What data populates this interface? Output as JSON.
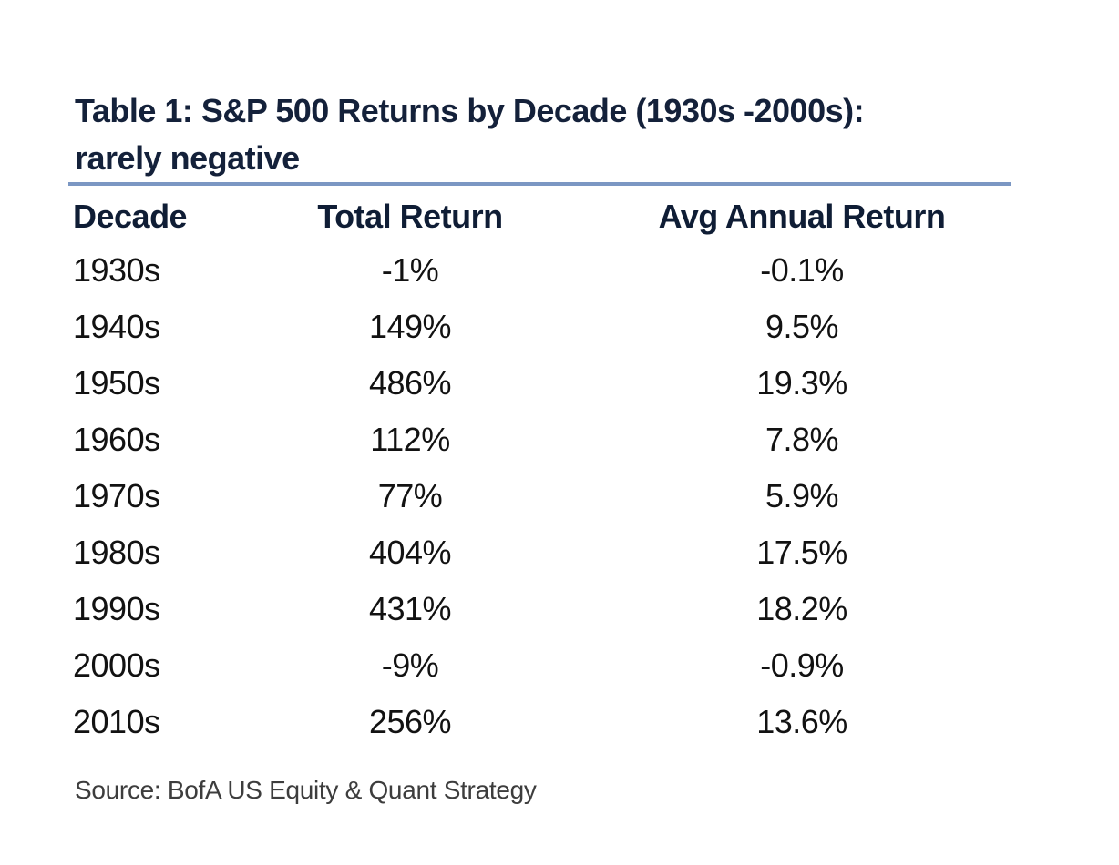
{
  "colors": {
    "title_navy": "#14213A",
    "header_navy": "#0F1D35",
    "body_text": "#121212",
    "divider_blue": "#7B97C3",
    "source_gray": "#3D3D3D"
  },
  "header": {
    "title_line1": "Table 1: S&P 500 Returns by Decade (1930s -2000s):",
    "title_line2": "rarely negative"
  },
  "table": {
    "columns": [
      "Decade",
      "Total Return",
      "Avg Annual Return"
    ],
    "rows": [
      {
        "decade": "1930s",
        "total_return": "-1%",
        "avg_annual_return": "-0.1%"
      },
      {
        "decade": "1940s",
        "total_return": "149%",
        "avg_annual_return": "9.5%"
      },
      {
        "decade": "1950s",
        "total_return": "486%",
        "avg_annual_return": "19.3%"
      },
      {
        "decade": "1960s",
        "total_return": "112%",
        "avg_annual_return": "7.8%"
      },
      {
        "decade": "1970s",
        "total_return": "77%",
        "avg_annual_return": "5.9%"
      },
      {
        "decade": "1980s",
        "total_return": "404%",
        "avg_annual_return": "17.5%"
      },
      {
        "decade": "1990s",
        "total_return": "431%",
        "avg_annual_return": "18.2%"
      },
      {
        "decade": "2000s",
        "total_return": "-9%",
        "avg_annual_return": "-0.9%"
      },
      {
        "decade": "2010s",
        "total_return": "256%",
        "avg_annual_return": "13.6%"
      }
    ]
  },
  "footer": {
    "source": "Source: BofA US Equity & Quant Strategy"
  },
  "chart_data": {
    "type": "table",
    "title": "Table 1: S&P 500 Returns by Decade (1930s -2000s): rarely negative",
    "columns": [
      "Decade",
      "Total Return",
      "Avg Annual Return"
    ],
    "categories": [
      "1930s",
      "1940s",
      "1950s",
      "1960s",
      "1970s",
      "1980s",
      "1990s",
      "2000s",
      "2010s"
    ],
    "series": [
      {
        "name": "Total Return (%)",
        "values": [
          -1,
          149,
          486,
          112,
          77,
          404,
          431,
          -9,
          256
        ]
      },
      {
        "name": "Avg Annual Return (%)",
        "values": [
          -0.1,
          9.5,
          19.3,
          7.8,
          5.9,
          17.5,
          18.2,
          -0.9,
          13.6
        ]
      }
    ],
    "source": "Source: BofA US Equity & Quant Strategy"
  }
}
